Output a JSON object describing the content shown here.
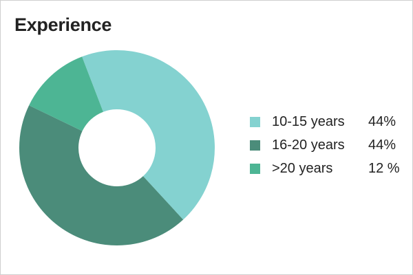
{
  "title": "Experience",
  "chart_data": {
    "type": "pie",
    "donut": true,
    "title": "Experience",
    "slices": [
      {
        "label": "10-15 years",
        "value": 44,
        "value_text": "44%",
        "color": "#84d2d0"
      },
      {
        "label": "16-20 years",
        "value": 44,
        "value_text": "44%",
        "color": "#4b8c7a"
      },
      {
        "label": ">20 years",
        "value": 12,
        "value_text": "12 %",
        "color": "#4db594"
      }
    ],
    "legend_position": "right"
  }
}
